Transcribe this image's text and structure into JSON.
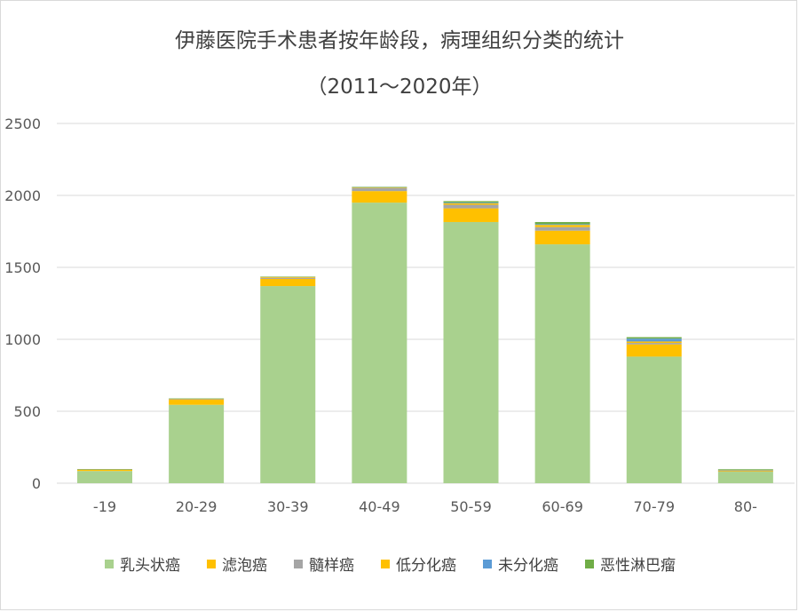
{
  "chart_data": {
    "type": "bar",
    "stacked": true,
    "title": "伊藤医院手术患者按年龄段，病理组织分类的统计",
    "subtitle": "（2011～2020年）",
    "categories": [
      "-19",
      "20-29",
      "30-39",
      "40-49",
      "50-59",
      "60-69",
      "70-79",
      "80-"
    ],
    "ylim": [
      0,
      2500
    ],
    "yticks": [
      0,
      500,
      1000,
      1500,
      2000,
      2500
    ],
    "grid": true,
    "legend_position": "bottom",
    "series": [
      {
        "name": "乳头状癌",
        "color": "#a9d18e",
        "values": [
          85,
          545,
          1370,
          1950,
          1815,
          1660,
          880,
          80
        ]
      },
      {
        "name": "滤泡癌",
        "color": "#ffc000",
        "values": [
          10,
          35,
          50,
          80,
          95,
          95,
          85,
          5
        ]
      },
      {
        "name": "髓样癌",
        "color": "#a5a5a5",
        "values": [
          2,
          5,
          8,
          20,
          25,
          25,
          10,
          2
        ]
      },
      {
        "name": "低分化癌",
        "color": "#ffc000",
        "values": [
          0,
          2,
          5,
          5,
          10,
          15,
          10,
          2
        ]
      },
      {
        "name": "未分化癌",
        "color": "#5b9bd5",
        "values": [
          0,
          0,
          0,
          2,
          5,
          5,
          20,
          3
        ]
      },
      {
        "name": "恶性淋巴瘤",
        "color": "#70ad47",
        "values": [
          1,
          2,
          3,
          3,
          10,
          15,
          10,
          5
        ]
      }
    ]
  }
}
